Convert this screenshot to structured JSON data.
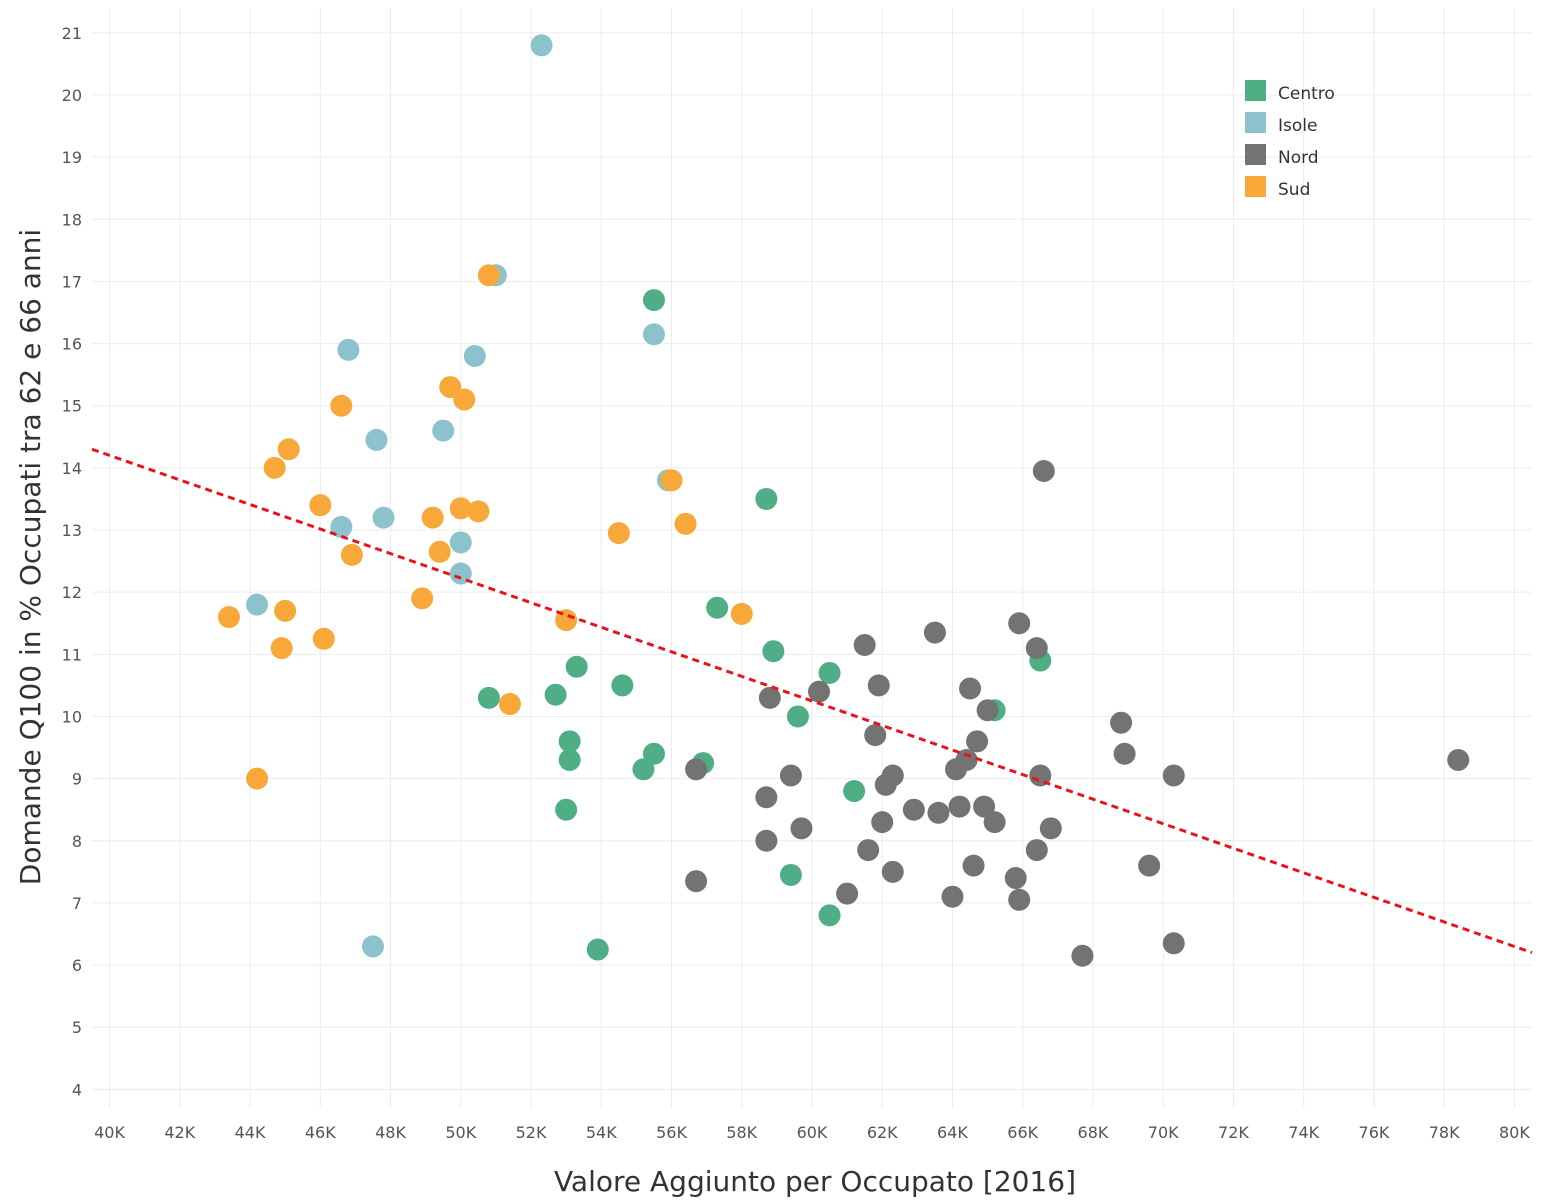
{
  "chart_data": {
    "type": "scatter",
    "title": "",
    "xlabel": "Valore Aggiunto per Occupato [2016]",
    "ylabel": "Domande Q100 in % Occupati tra 62 e 66 anni",
    "xlim": [
      39500,
      80500
    ],
    "ylim": [
      3.7,
      21.4
    ],
    "grid": true,
    "legend_position": "top-right",
    "x_ticks": [
      40000,
      42000,
      44000,
      46000,
      48000,
      50000,
      52000,
      54000,
      56000,
      58000,
      60000,
      62000,
      64000,
      66000,
      68000,
      70000,
      72000,
      74000,
      76000,
      78000,
      80000
    ],
    "x_tick_labels": [
      "40K",
      "42K",
      "44K",
      "46K",
      "48K",
      "50K",
      "52K",
      "54K",
      "56K",
      "58K",
      "60K",
      "62K",
      "64K",
      "66K",
      "68K",
      "70K",
      "72K",
      "74K",
      "76K",
      "78K",
      "80K"
    ],
    "y_ticks": [
      4,
      5,
      6,
      7,
      8,
      9,
      10,
      11,
      12,
      13,
      14,
      15,
      16,
      17,
      18,
      19,
      20,
      21
    ],
    "y_tick_labels": [
      "4",
      "5",
      "6",
      "7",
      "8",
      "9",
      "10",
      "11",
      "12",
      "13",
      "14",
      "15",
      "16",
      "17",
      "18",
      "19",
      "20",
      "21"
    ],
    "trendline": {
      "style": "dashed",
      "color": "#e8141c",
      "from": [
        39500,
        14.3
      ],
      "to": [
        80500,
        6.2
      ]
    },
    "series": [
      {
        "name": "Centro",
        "color": "#4fae86",
        "points": [
          [
            55500,
            16.7
          ],
          [
            58700,
            13.5
          ],
          [
            57300,
            11.75
          ],
          [
            58900,
            11.05
          ],
          [
            60500,
            10.7
          ],
          [
            66500,
            10.9
          ],
          [
            53300,
            10.8
          ],
          [
            54600,
            10.5
          ],
          [
            52700,
            10.35
          ],
          [
            50800,
            10.3
          ],
          [
            59600,
            10.0
          ],
          [
            65200,
            10.1
          ],
          [
            53100,
            9.6
          ],
          [
            53100,
            9.3
          ],
          [
            55500,
            9.4
          ],
          [
            55200,
            9.15
          ],
          [
            56900,
            9.25
          ],
          [
            61200,
            8.8
          ],
          [
            53000,
            8.5
          ],
          [
            59400,
            7.45
          ],
          [
            60500,
            6.8
          ],
          [
            53900,
            6.25
          ]
        ]
      },
      {
        "name": "Isole",
        "color": "#8cc2cc",
        "points": [
          [
            52300,
            20.8
          ],
          [
            51000,
            17.1
          ],
          [
            55500,
            16.15
          ],
          [
            46800,
            15.9
          ],
          [
            50400,
            15.8
          ],
          [
            47600,
            14.45
          ],
          [
            49500,
            14.6
          ],
          [
            55900,
            13.8
          ],
          [
            46600,
            13.05
          ],
          [
            47800,
            13.2
          ],
          [
            50000,
            12.8
          ],
          [
            50000,
            12.3
          ],
          [
            44200,
            11.8
          ],
          [
            47500,
            6.3
          ]
        ]
      },
      {
        "name": "Nord",
        "color": "#737373",
        "points": [
          [
            66600,
            13.95
          ],
          [
            65900,
            11.5
          ],
          [
            66400,
            11.1
          ],
          [
            63500,
            11.35
          ],
          [
            61500,
            11.15
          ],
          [
            61900,
            10.5
          ],
          [
            60200,
            10.4
          ],
          [
            64500,
            10.45
          ],
          [
            58800,
            10.3
          ],
          [
            65000,
            10.1
          ],
          [
            61800,
            9.7
          ],
          [
            64700,
            9.6
          ],
          [
            56700,
            9.15
          ],
          [
            59400,
            9.05
          ],
          [
            62300,
            9.05
          ],
          [
            62100,
            8.9
          ],
          [
            64400,
            9.3
          ],
          [
            64100,
            9.15
          ],
          [
            66500,
            9.05
          ],
          [
            58700,
            8.7
          ],
          [
            59700,
            8.2
          ],
          [
            62000,
            8.3
          ],
          [
            62900,
            8.5
          ],
          [
            63600,
            8.45
          ],
          [
            64200,
            8.55
          ],
          [
            64900,
            8.55
          ],
          [
            65200,
            8.3
          ],
          [
            66800,
            8.2
          ],
          [
            58700,
            8.0
          ],
          [
            61600,
            7.85
          ],
          [
            62300,
            7.5
          ],
          [
            64600,
            7.6
          ],
          [
            66400,
            7.85
          ],
          [
            65800,
            7.4
          ],
          [
            56700,
            7.35
          ],
          [
            61000,
            7.15
          ],
          [
            64000,
            7.1
          ],
          [
            65900,
            7.05
          ],
          [
            68800,
            9.9
          ],
          [
            68900,
            9.4
          ],
          [
            70300,
            9.05
          ],
          [
            69600,
            7.6
          ],
          [
            70300,
            6.35
          ],
          [
            67700,
            6.15
          ],
          [
            78400,
            9.3
          ]
        ]
      },
      {
        "name": "Sud",
        "color": "#f8a838",
        "points": [
          [
            50800,
            17.1
          ],
          [
            49700,
            15.3
          ],
          [
            50100,
            15.1
          ],
          [
            46600,
            15.0
          ],
          [
            45100,
            14.3
          ],
          [
            44700,
            14.0
          ],
          [
            46000,
            13.4
          ],
          [
            49200,
            13.2
          ],
          [
            50000,
            13.35
          ],
          [
            50500,
            13.3
          ],
          [
            54500,
            12.95
          ],
          [
            56000,
            13.8
          ],
          [
            56400,
            13.1
          ],
          [
            49400,
            12.65
          ],
          [
            46900,
            12.6
          ],
          [
            48900,
            11.9
          ],
          [
            43400,
            11.6
          ],
          [
            45000,
            11.7
          ],
          [
            53000,
            11.55
          ],
          [
            58000,
            11.65
          ],
          [
            46100,
            11.25
          ],
          [
            44900,
            11.1
          ],
          [
            51400,
            10.2
          ],
          [
            44200,
            9.0
          ]
        ]
      }
    ]
  }
}
